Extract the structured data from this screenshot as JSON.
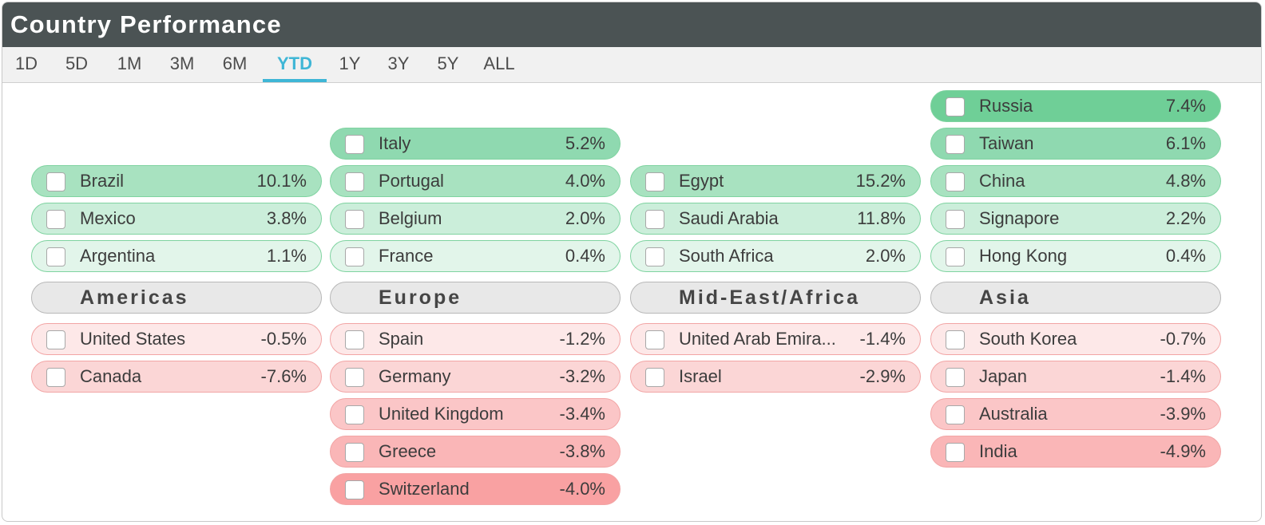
{
  "title": "Country Performance",
  "tabs": [
    {
      "label": "1D",
      "active": false
    },
    {
      "label": "5D",
      "active": false
    },
    {
      "label": "1M",
      "active": false
    },
    {
      "label": "3M",
      "active": false
    },
    {
      "label": "6M",
      "active": false
    },
    {
      "label": "YTD",
      "active": true
    },
    {
      "label": "1Y",
      "active": false
    },
    {
      "label": "3Y",
      "active": false
    },
    {
      "label": "5Y",
      "active": false
    },
    {
      "label": "ALL",
      "active": false
    }
  ],
  "colors": {
    "titlebar": "#4b5354",
    "accent": "#3fb6d6",
    "positive_strong": "#6fcf97",
    "negative_strong": "#f9999b"
  },
  "regions": [
    {
      "name": "Americas",
      "gainers": [
        {
          "country": "Brazil",
          "value": "10.1%",
          "color": "#a8e2c0"
        },
        {
          "country": "Mexico",
          "value": "3.8%",
          "color": "#cbeeda"
        },
        {
          "country": "Argentina",
          "value": "1.1%",
          "color": "#e2f5ea"
        }
      ],
      "losers": [
        {
          "country": "United States",
          "value": "-0.5%",
          "color": "#fde8e8"
        },
        {
          "country": "Canada",
          "value": "-7.6%",
          "color": "#fbd6d6"
        }
      ]
    },
    {
      "name": "Europe",
      "gainers": [
        {
          "country": "Italy",
          "value": "5.2%",
          "color": "#8fd9b0"
        },
        {
          "country": "Portugal",
          "value": "4.0%",
          "color": "#a8e2c0"
        },
        {
          "country": "Belgium",
          "value": "2.0%",
          "color": "#cbeeda"
        },
        {
          "country": "France",
          "value": "0.4%",
          "color": "#e2f5ea"
        }
      ],
      "losers": [
        {
          "country": "Spain",
          "value": "-1.2%",
          "color": "#fde8e8"
        },
        {
          "country": "Germany",
          "value": "-3.2%",
          "color": "#fbd6d6"
        },
        {
          "country": "United Kingdom",
          "value": "-3.4%",
          "color": "#fbc6c7"
        },
        {
          "country": "Greece",
          "value": "-3.8%",
          "color": "#fab6b7"
        },
        {
          "country": "Switzerland",
          "value": "-4.0%",
          "color": "#f9a1a2"
        }
      ]
    },
    {
      "name": "Mid-East/Africa",
      "gainers": [
        {
          "country": "Egypt",
          "value": "15.2%",
          "color": "#a8e2c0"
        },
        {
          "country": "Saudi Arabia",
          "value": "11.8%",
          "color": "#cbeeda"
        },
        {
          "country": "South Africa",
          "value": "2.0%",
          "color": "#e2f5ea"
        }
      ],
      "losers": [
        {
          "country": "United Arab Emira...",
          "value": "-1.4%",
          "color": "#fde8e8"
        },
        {
          "country": "Israel",
          "value": "-2.9%",
          "color": "#fbd6d6"
        }
      ]
    },
    {
      "name": "Asia",
      "gainers": [
        {
          "country": "Russia",
          "value": "7.4%",
          "color": "#6fcf97"
        },
        {
          "country": "Taiwan",
          "value": "6.1%",
          "color": "#8fd9b0"
        },
        {
          "country": "China",
          "value": "4.8%",
          "color": "#a8e2c0"
        },
        {
          "country": "Signapore",
          "value": "2.2%",
          "color": "#cbeeda"
        },
        {
          "country": "Hong Kong",
          "value": "0.4%",
          "color": "#e2f5ea"
        }
      ],
      "losers": [
        {
          "country": "South Korea",
          "value": "-0.7%",
          "color": "#fde8e8"
        },
        {
          "country": "Japan",
          "value": "-1.4%",
          "color": "#fbd6d6"
        },
        {
          "country": "Australia",
          "value": "-3.9%",
          "color": "#fbc6c7"
        },
        {
          "country": "India",
          "value": "-4.9%",
          "color": "#fab6b7"
        }
      ]
    }
  ]
}
